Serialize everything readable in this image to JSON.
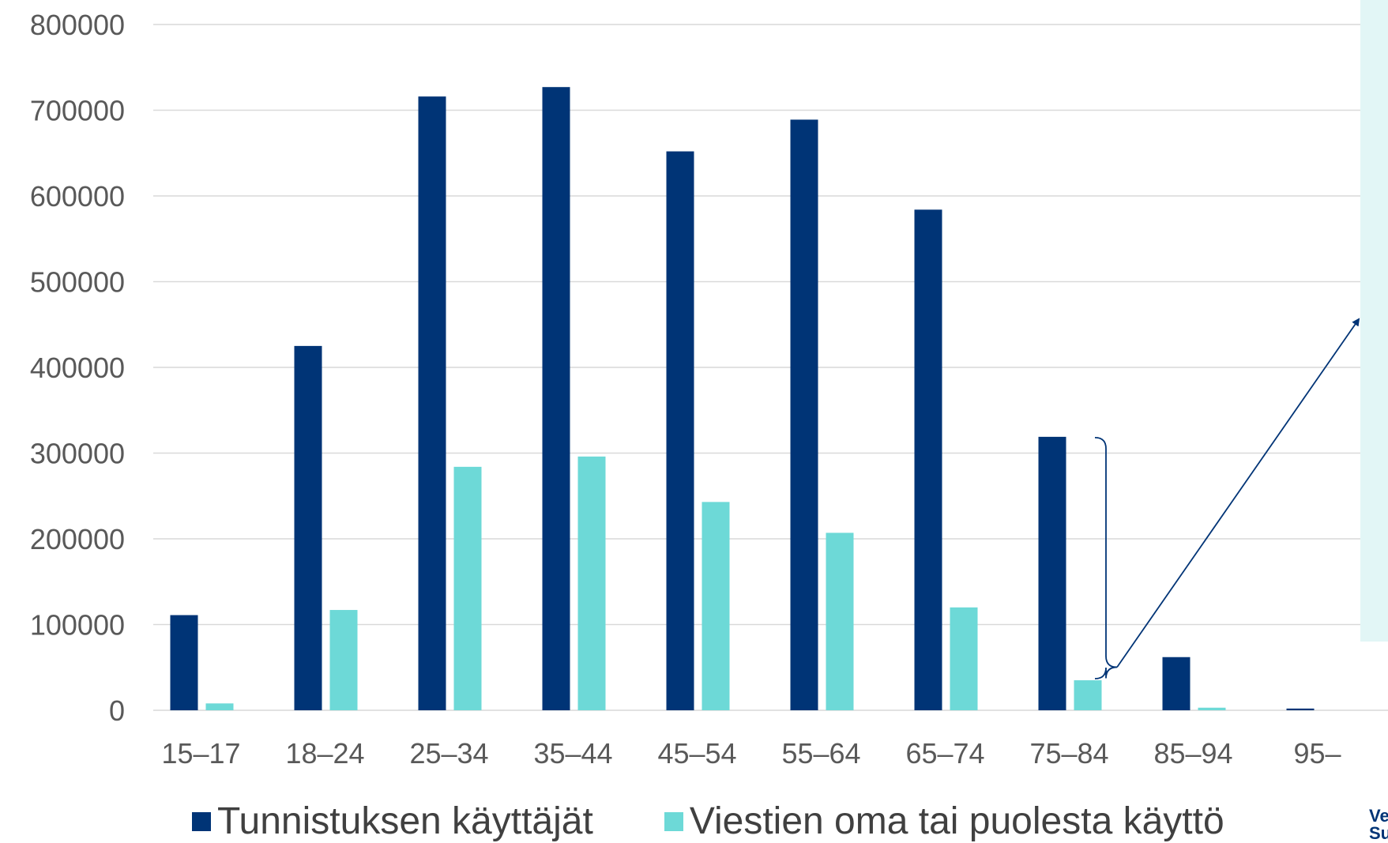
{
  "chart_data": {
    "type": "bar",
    "categories": [
      "15–17",
      "18–24",
      "25–34",
      "35–44",
      "45–54",
      "55–64",
      "65–74",
      "75–84",
      "85–94",
      "95–"
    ],
    "series": [
      {
        "name": "Tunnistuksen käyttäjät",
        "color": "#003476",
        "values": [
          111000,
          425000,
          716000,
          727000,
          652000,
          689000,
          584000,
          319000,
          62000,
          2000
        ]
      },
      {
        "name": "Viestien oma tai puolesta käyttö",
        "color": "#6DD9D7",
        "values": [
          8000,
          117000,
          284000,
          296000,
          243000,
          207000,
          120000,
          35000,
          3000,
          0
        ]
      }
    ],
    "ylim": [
      0,
      800000
    ],
    "yticks": [
      "0",
      "100000",
      "200000",
      "300000",
      "400000",
      "500000",
      "600000",
      "700000",
      "800000"
    ],
    "grid": true,
    "legend_position": "bottom",
    "annotation": {
      "type": "bracket-with-arrow",
      "category": "75–84",
      "points_to": "callout-panel"
    }
  },
  "callout": {
    "background": "#E2F6F6",
    "text": ""
  },
  "corner_note": {
    "text": "Ve\nSu",
    "color": "#003476"
  },
  "colors": {
    "grid": "#D9D9D9",
    "axis_text": "#595959",
    "legend_text": "#404040",
    "arrow": "#003476"
  }
}
